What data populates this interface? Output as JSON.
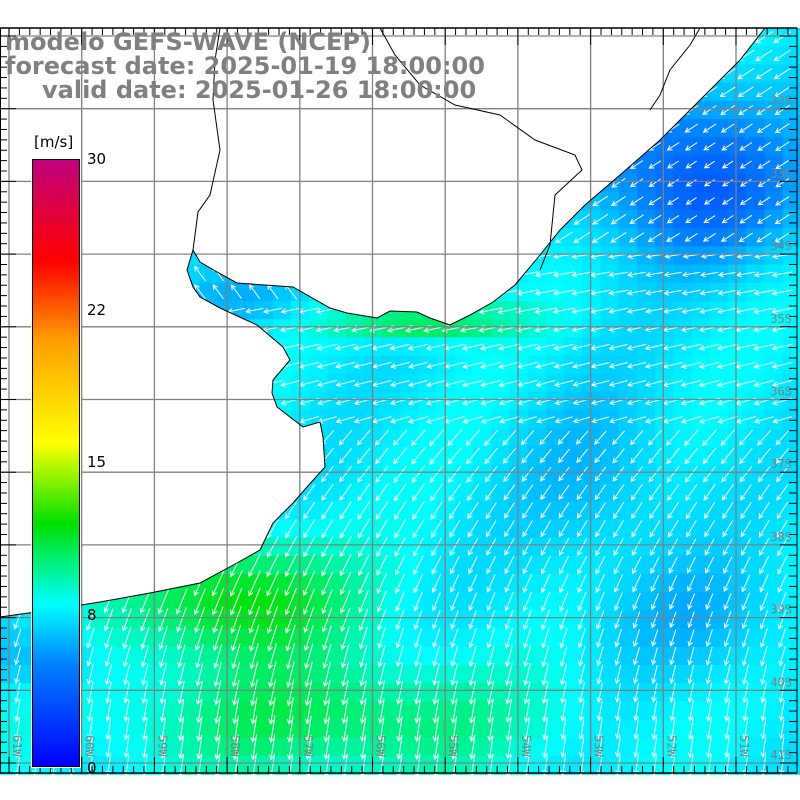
{
  "header": {
    "model": "modelo GEFS-WAVE (NCEP)",
    "forecast_date": "forecast date: 2025-01-19 18:00:00",
    "valid_date": "valid date: 2025-01-26 18:00:00"
  },
  "map": {
    "variable_unit": "[m/s]",
    "latitude_labels": [
      "32S",
      "33S",
      "34S",
      "35S",
      "36S",
      "37S",
      "38S",
      "39S",
      "40S",
      "41S"
    ],
    "longitude_labels": [
      "61W",
      "60W",
      "59W",
      "58W",
      "57W",
      "56W",
      "55W",
      "54W",
      "53W",
      "52W",
      "51W"
    ]
  },
  "colorbar": {
    "unit": "[m/s]",
    "min": 0,
    "max": 30,
    "tick_labels": [
      "30",
      "22",
      "15",
      "8",
      "0"
    ],
    "tick_values": [
      30,
      22,
      15,
      8,
      0
    ],
    "colors": {
      "v0": "#0000ff",
      "v5": "#0080ff",
      "v8": "#00ffff",
      "v12": "#00e000",
      "v16": "#ffff00",
      "v21": "#ffa000",
      "v25": "#ff0000",
      "v30": "#c0007c"
    }
  },
  "colors": {
    "title": "#808080",
    "grid": "#808080",
    "coast": "#000000",
    "land": "#ffffff",
    "arrow": "#ffffff",
    "label": "#808080"
  }
}
